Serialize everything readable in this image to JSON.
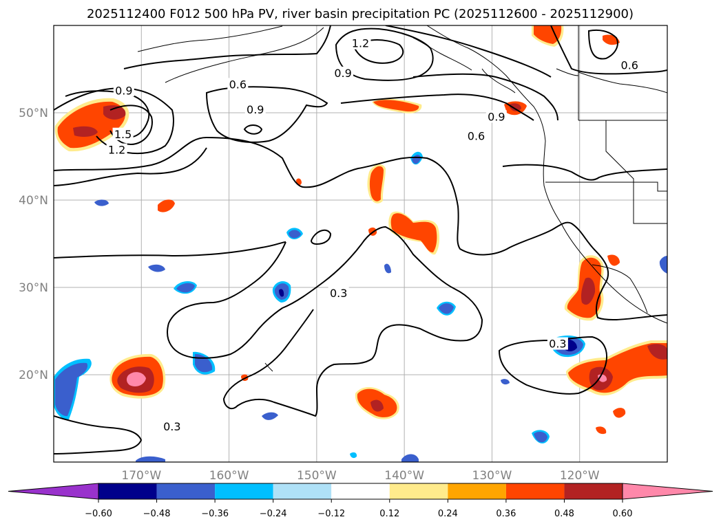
{
  "chart_data": {
    "type": "map-contour",
    "title": "2025112400 F012 500 hPa PV, river basin precipitation PC (2025112600 - 2025112900)",
    "lon_range": [
      -180,
      -110
    ],
    "lat_range": [
      10,
      60
    ],
    "lon_ticks": [
      {
        "value": -170,
        "label": "170°W"
      },
      {
        "value": -160,
        "label": "160°W"
      },
      {
        "value": -150,
        "label": "150°W"
      },
      {
        "value": -140,
        "label": "140°W"
      },
      {
        "value": -130,
        "label": "130°W"
      },
      {
        "value": -120,
        "label": "120°W"
      }
    ],
    "lat_ticks": [
      {
        "value": 20,
        "label": "20°N"
      },
      {
        "value": 30,
        "label": "30°N"
      },
      {
        "value": 40,
        "label": "40°N"
      },
      {
        "value": 50,
        "label": "50°N"
      }
    ],
    "grid": true,
    "contour_variable": "500 hPa PV",
    "contour_labels": [
      {
        "value": "0.3",
        "lon": -166.5,
        "lat": 14.0
      },
      {
        "value": "0.3",
        "lon": -147.5,
        "lat": 29.3
      },
      {
        "value": "0.3",
        "lon": -122.5,
        "lat": 23.5
      },
      {
        "value": "0.6",
        "lon": -159.0,
        "lat": 53.2
      },
      {
        "value": "0.6",
        "lon": -131.8,
        "lat": 47.3
      },
      {
        "value": "0.6",
        "lon": -114.3,
        "lat": 55.4
      },
      {
        "value": "0.9",
        "lon": -172.0,
        "lat": 52.5
      },
      {
        "value": "0.9",
        "lon": -157.0,
        "lat": 50.3
      },
      {
        "value": "0.9",
        "lon": -147.0,
        "lat": 54.5
      },
      {
        "value": "0.9",
        "lon": -129.5,
        "lat": 49.5
      },
      {
        "value": "1.2",
        "lon": -145.0,
        "lat": 57.9
      },
      {
        "value": "1.2",
        "lon": -172.8,
        "lat": 45.7
      },
      {
        "value": "1.5",
        "lon": -172.1,
        "lat": 47.5
      }
    ],
    "colorbar": {
      "levels": [
        "−0.60",
        "−0.48",
        "−0.36",
        "−0.24",
        "−0.12",
        "0.12",
        "0.24",
        "0.36",
        "0.48",
        "0.60"
      ],
      "colors": [
        "#9932cc",
        "#00008b",
        "#3a5fcd",
        "#00bfff",
        "#afe1f7",
        "#ffffff",
        "#ffeb8c",
        "#ffa500",
        "#ff4500",
        "#b22222",
        "#ff88aa"
      ],
      "extend": "both"
    }
  }
}
